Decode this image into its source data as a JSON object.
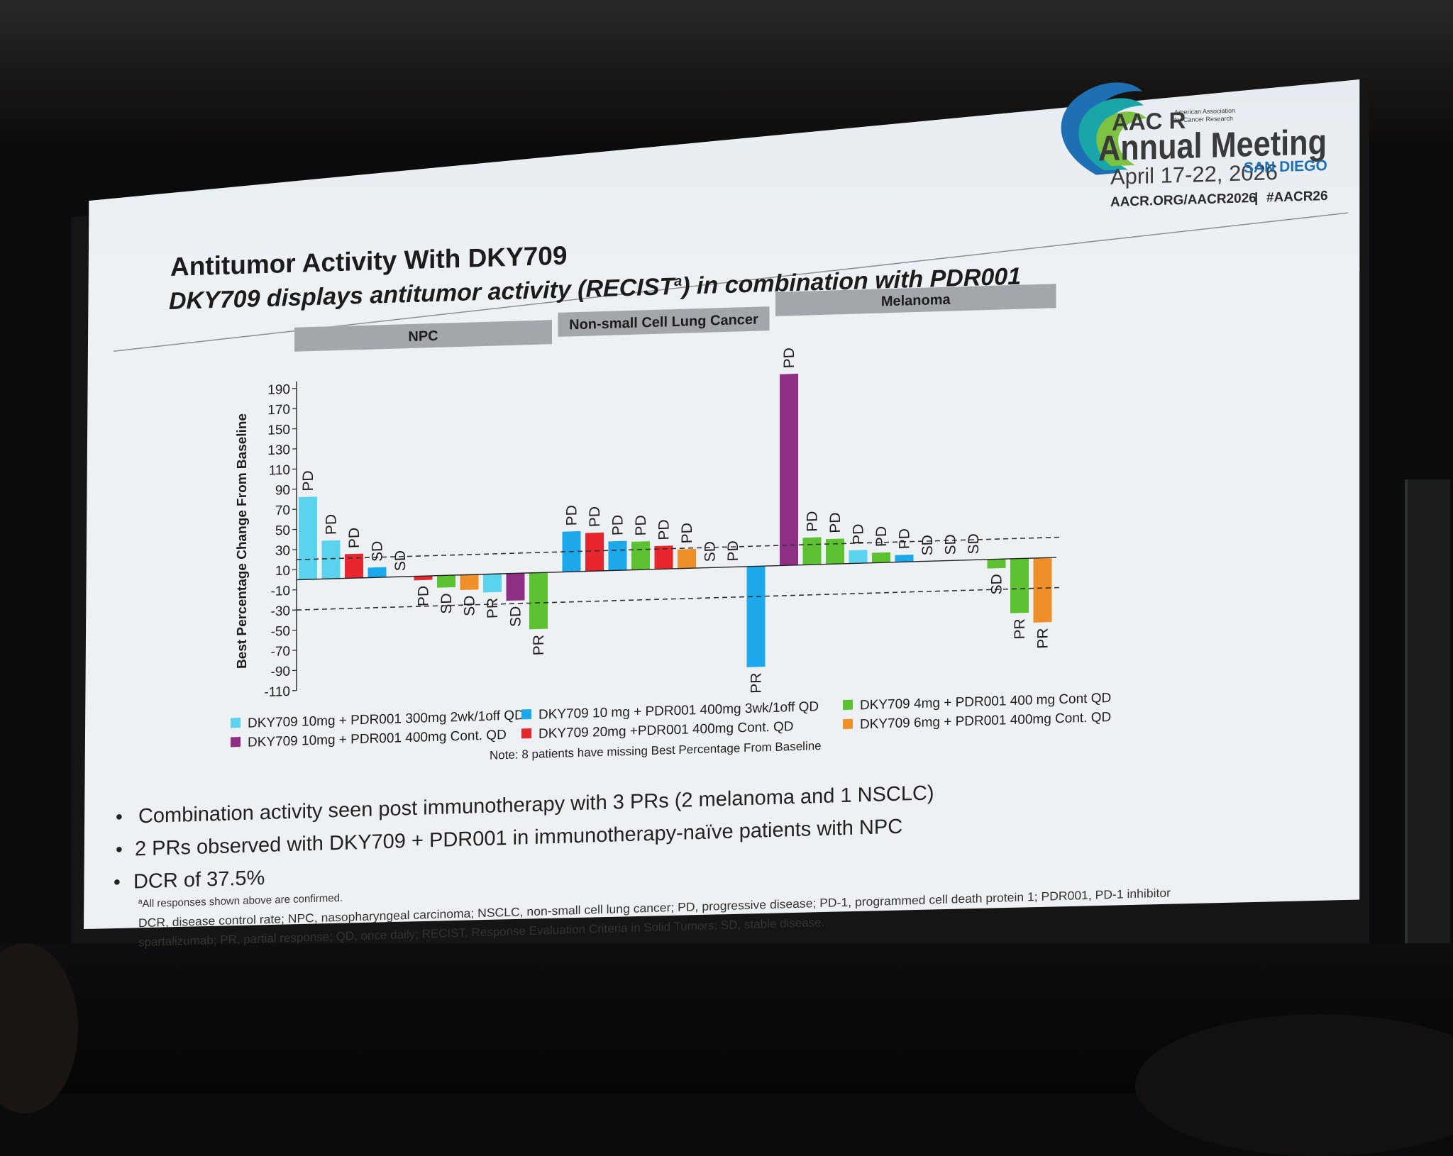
{
  "slide": {
    "title": "Antitumor Activity With DKY709",
    "subtitle_pre": "DKY709 displays antitumor activity (RECIST",
    "subtitle_sup": "a",
    "subtitle_post": ") in combination with PDR001"
  },
  "logo": {
    "brand": "AAC R",
    "org_line1": "American Association",
    "org_line2": "for Cancer Research",
    "event": "Annual Meeting",
    "dates": "April 17-22, 2026",
    "city": "SAN DIEGO",
    "web": "AACR.ORG/AACR2026",
    "sep": "|",
    "hashtag": "#AACR26",
    "colors": {
      "green": "#7dc242",
      "teal": "#1aa6a8",
      "blue": "#1f6fb5",
      "dark": "#3a3a3a"
    }
  },
  "chart_data": {
    "type": "bar",
    "ylabel": "Best Percentage Change From Baseline",
    "ylim": [
      -110,
      190
    ],
    "yticks": [
      190,
      170,
      150,
      130,
      110,
      90,
      70,
      50,
      30,
      10,
      -10,
      -30,
      -50,
      -70,
      -90,
      -110
    ],
    "reference_lines": [
      20,
      -30
    ],
    "groups": [
      {
        "name": "NPC",
        "bars": [
          {
            "value": 82,
            "response": "PD",
            "cohort": "10mg_300_2wk"
          },
          {
            "value": 38,
            "response": "PD",
            "cohort": "10mg_300_2wk"
          },
          {
            "value": 24,
            "response": "PD",
            "cohort": "20mg_400"
          },
          {
            "value": 10,
            "response": "SD",
            "cohort": "10mg_400_3wk"
          },
          {
            "value": 0,
            "response": "SD",
            "cohort": "10mg_300_2wk"
          },
          {
            "value": -4,
            "response": "PD",
            "cohort": "20mg_400"
          },
          {
            "value": -12,
            "response": "SD",
            "cohort": "4mg_400"
          },
          {
            "value": -15,
            "response": "SD",
            "cohort": "6mg_400"
          },
          {
            "value": -18,
            "response": "PR",
            "cohort": "10mg_300_2wk"
          },
          {
            "value": -27,
            "response": "SD",
            "cohort": "10mg_400_cont"
          },
          {
            "value": -56,
            "response": "PR",
            "cohort": "4mg_400"
          }
        ]
      },
      {
        "name": "Non-small Cell Lung Cancer",
        "bars": [
          {
            "value": 40,
            "response": "PD",
            "cohort": "10mg_400_3wk"
          },
          {
            "value": 38,
            "response": "PD",
            "cohort": "20mg_400"
          },
          {
            "value": 29,
            "response": "PD",
            "cohort": "10mg_400_3wk"
          },
          {
            "value": 28,
            "response": "PD",
            "cohort": "4mg_400"
          },
          {
            "value": 23,
            "response": "PD",
            "cohort": "20mg_400"
          },
          {
            "value": 19,
            "response": "PD",
            "cohort": "6mg_400"
          },
          {
            "value": 0,
            "response": "SD",
            "cohort": "10mg_400_3wk"
          },
          {
            "value": 0,
            "response": "PD",
            "cohort": "10mg_300_2wk"
          },
          {
            "value": -100,
            "response": "PR",
            "cohort": "10mg_400_3wk"
          }
        ]
      },
      {
        "name": "Melanoma",
        "bars": [
          {
            "value": 190,
            "response": "PD",
            "cohort": "10mg_400_cont"
          },
          {
            "value": 27,
            "response": "PD",
            "cohort": "4mg_400"
          },
          {
            "value": 25,
            "response": "PD",
            "cohort": "4mg_400"
          },
          {
            "value": 13,
            "response": "PD",
            "cohort": "10mg_300_2wk"
          },
          {
            "value": 10,
            "response": "PD",
            "cohort": "4mg_400"
          },
          {
            "value": 7,
            "response": "PD",
            "cohort": "10mg_400_3wk"
          },
          {
            "value": 0,
            "response": "SD",
            "cohort": "10mg_300_2wk"
          },
          {
            "value": 0,
            "response": "SD",
            "cohort": "10mg_300_2wk"
          },
          {
            "value": 0,
            "response": "SD",
            "cohort": "10mg_300_2wk"
          },
          {
            "value": -9,
            "response": "SD",
            "cohort": "4mg_400"
          },
          {
            "value": -54,
            "response": "PR",
            "cohort": "4mg_400"
          },
          {
            "value": -64,
            "response": "PR",
            "cohort": "6mg_400"
          }
        ]
      }
    ],
    "legend": [
      {
        "key": "10mg_300_2wk",
        "label": "DKY709 10mg + PDR001 300mg 2wk/1off QD",
        "color": "#5bd3ef"
      },
      {
        "key": "10mg_400_3wk",
        "label": "DKY709 10 mg + PDR001 400mg 3wk/1off QD",
        "color": "#1ea8ec"
      },
      {
        "key": "4mg_400",
        "label": "DKY709 4mg + PDR001 400 mg Cont QD",
        "color": "#5cc232"
      },
      {
        "key": "10mg_400_cont",
        "label": "DKY709 10mg + PDR001 400mg Cont. QD",
        "color": "#8e2f85"
      },
      {
        "key": "20mg_400",
        "label": "DKY709 20mg +PDR001 400mg Cont. QD",
        "color": "#e8262d"
      },
      {
        "key": "6mg_400",
        "label": "DKY709 6mg + PDR001 400mg Cont. QD",
        "color": "#ee8f2a"
      }
    ],
    "note": "Note: 8 patients have missing Best Percentage From Baseline"
  },
  "bullets": [
    "Combination activity seen post immunotherapy with 3 PRs (2 melanoma and 1 NSCLC)",
    "2 PRs observed with DKY709 + PDR001 in immunotherapy-naïve patients with NPC",
    "DCR of 37.5%"
  ],
  "footnotes": {
    "line1": "ªAll responses shown above are confirmed.",
    "line2": "DCR, disease control rate; NPC, nasopharyngeal carcinoma; NSCLC, non-small cell lung cancer; PD, progressive disease; PD-1, programmed cell death protein 1; PDR001, PD-1 inhibitor",
    "line3": "spartalizumab; PR, partial response; QD, once daily; RECIST, Response Evaluation Criteria in Solid Tumors; SD, stable disease."
  }
}
